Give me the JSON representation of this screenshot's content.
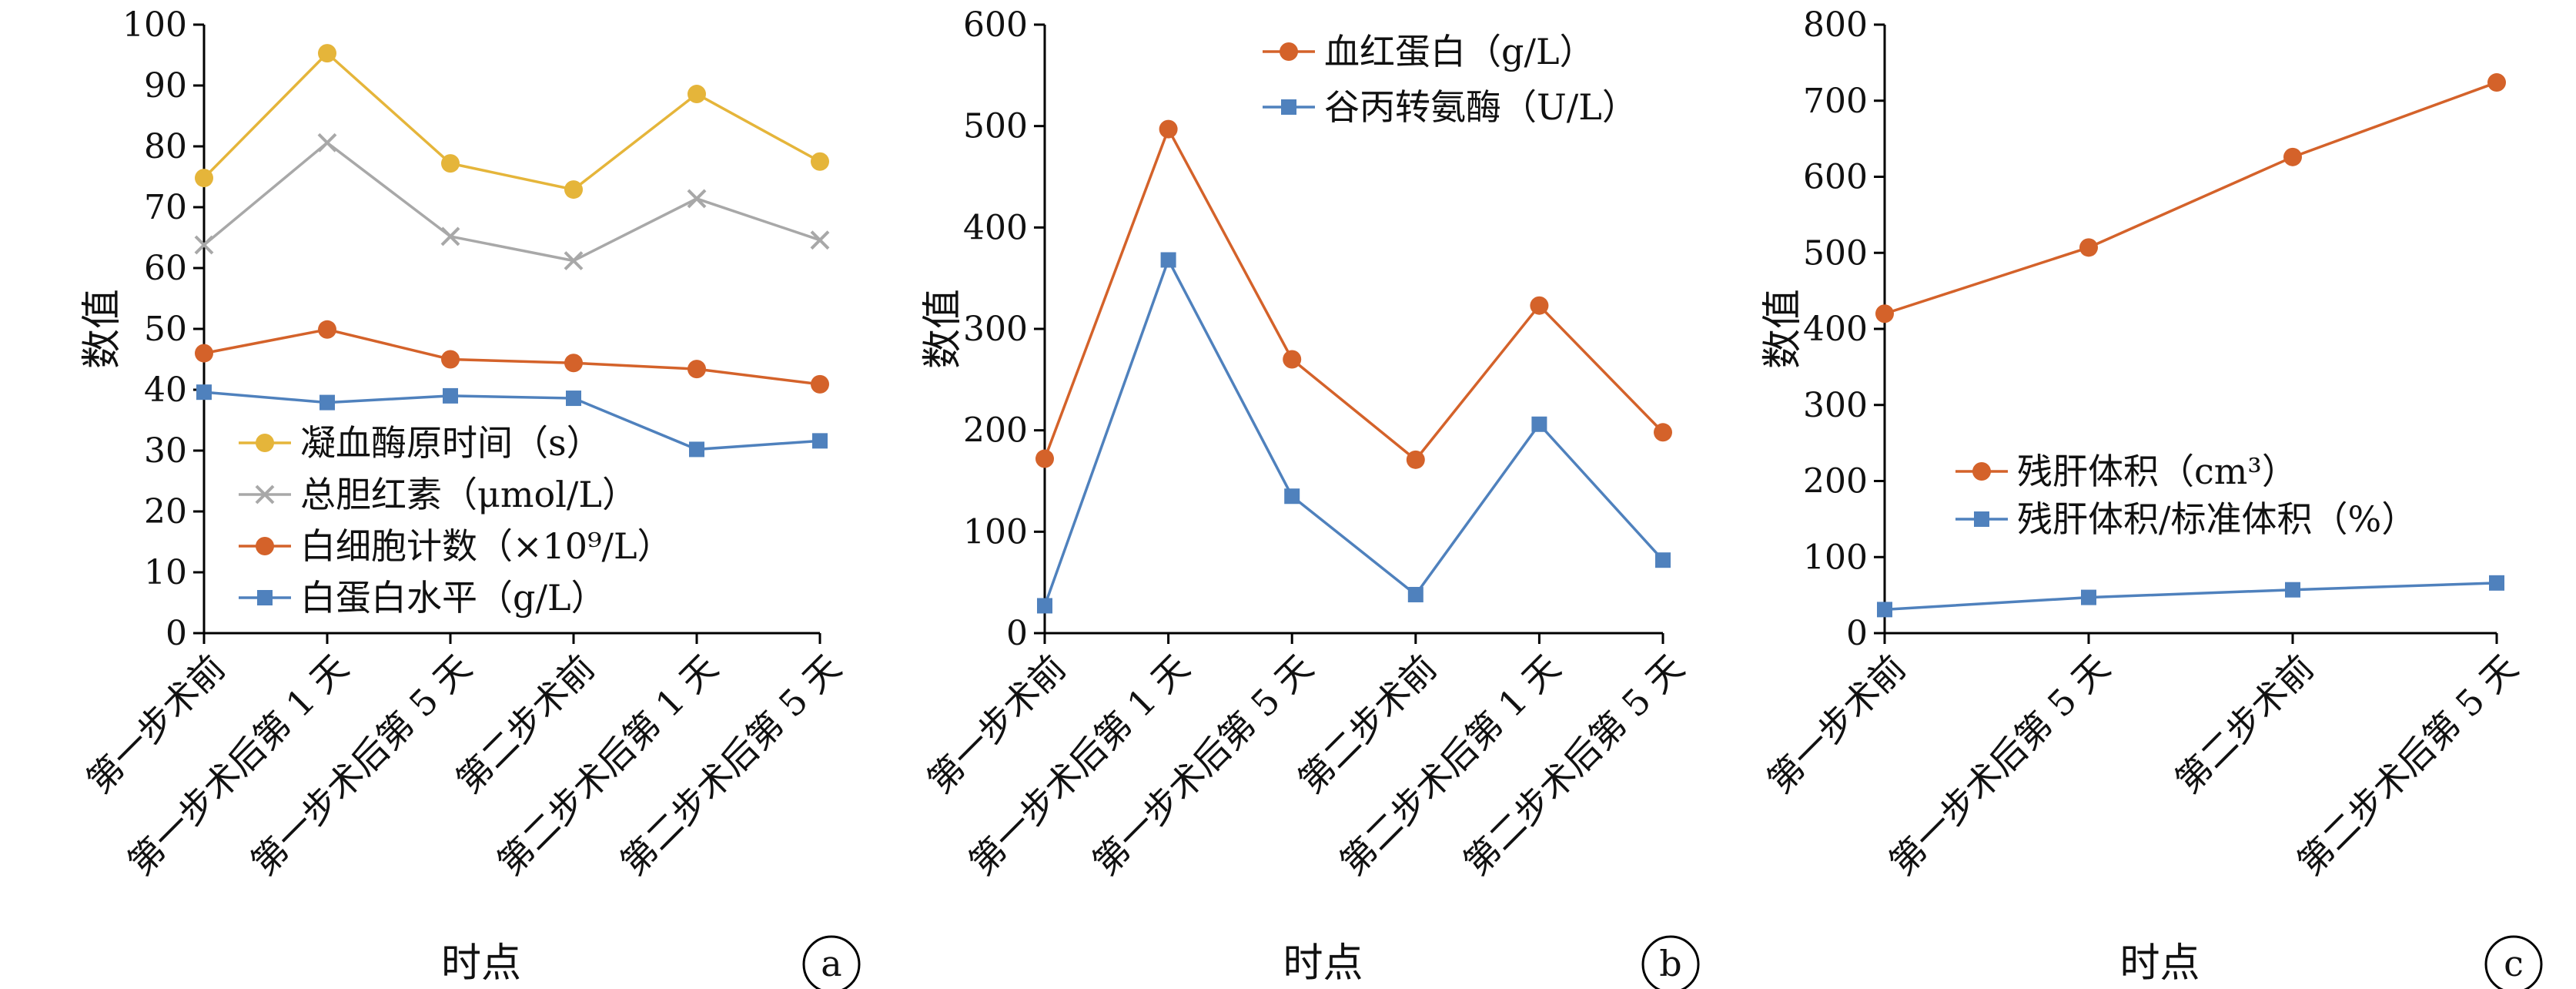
{
  "chart_data": [
    {
      "panel": "a",
      "type": "line",
      "categories": [
        "第一步术前",
        "第一步术后第 1 天",
        "第一步术后第 5 天",
        "第二步术前",
        "第二步术后第 1 天",
        "第二步术后第 5 天"
      ],
      "xlabel": "时点",
      "ylabel": "数值",
      "ylim": [
        0,
        100
      ],
      "yticks": [
        0,
        10,
        20,
        30,
        40,
        50,
        60,
        70,
        80,
        90,
        100
      ],
      "legend_position": "bottom-left",
      "series": [
        {
          "name": "凝血酶原时间（s）",
          "values": [
            74.8,
            95.3,
            77.2,
            72.9,
            88.6,
            77.5
          ],
          "color": "#e5b53a",
          "marker": "circle"
        },
        {
          "name": "总胆红素（μmol/L）",
          "values": [
            63.8,
            80.6,
            65.2,
            61.2,
            71.4,
            64.6
          ],
          "color": "#a8a8a8",
          "marker": "x"
        },
        {
          "name": "白细胞计数（×10⁹/L）",
          "values": [
            46.0,
            49.9,
            45.0,
            44.4,
            43.4,
            40.9
          ],
          "color": "#d4622a",
          "marker": "circle"
        },
        {
          "name": "白蛋白水平（g/L）",
          "values": [
            39.6,
            37.9,
            39.0,
            38.6,
            30.2,
            31.6
          ],
          "color": "#4f81bd",
          "marker": "square"
        }
      ]
    },
    {
      "panel": "b",
      "type": "line",
      "categories": [
        "第一步术前",
        "第一步术后第 1 天",
        "第一步术后第 5 天",
        "第二步术前",
        "第二步术后第 1 天",
        "第二步术后第 5 天"
      ],
      "xlabel": "时点",
      "ylabel": "数值",
      "ylim": [
        0,
        600
      ],
      "yticks": [
        0,
        100,
        200,
        300,
        400,
        500,
        600
      ],
      "legend_position": "top-center",
      "series": [
        {
          "name": "血红蛋白（g/L）",
          "values": [
            172,
            497,
            270,
            171,
            323,
            198
          ],
          "color": "#d4622a",
          "marker": "circle"
        },
        {
          "name": "谷丙转氨酶（U/L）",
          "values": [
            27,
            368,
            135,
            38,
            206,
            72
          ],
          "color": "#4f81bd",
          "marker": "square"
        }
      ]
    },
    {
      "panel": "c",
      "type": "line",
      "categories": [
        "第一步术前",
        "第一步术后第 5 天",
        "第二步术前",
        "第二步术后第 5 天"
      ],
      "xlabel": "时点",
      "ylabel": "数值",
      "ylim": [
        0,
        800
      ],
      "yticks": [
        0,
        100,
        200,
        300,
        400,
        500,
        600,
        700,
        800
      ],
      "legend_position": "center-left",
      "series": [
        {
          "name": "残肝体积（cm³）",
          "values": [
            420,
            507,
            626,
            724
          ],
          "color": "#d4622a",
          "marker": "circle"
        },
        {
          "name": "残肝体积/标准体积（%）",
          "values": [
            31,
            47,
            57,
            66
          ],
          "color": "#4f81bd",
          "marker": "square"
        }
      ]
    }
  ]
}
